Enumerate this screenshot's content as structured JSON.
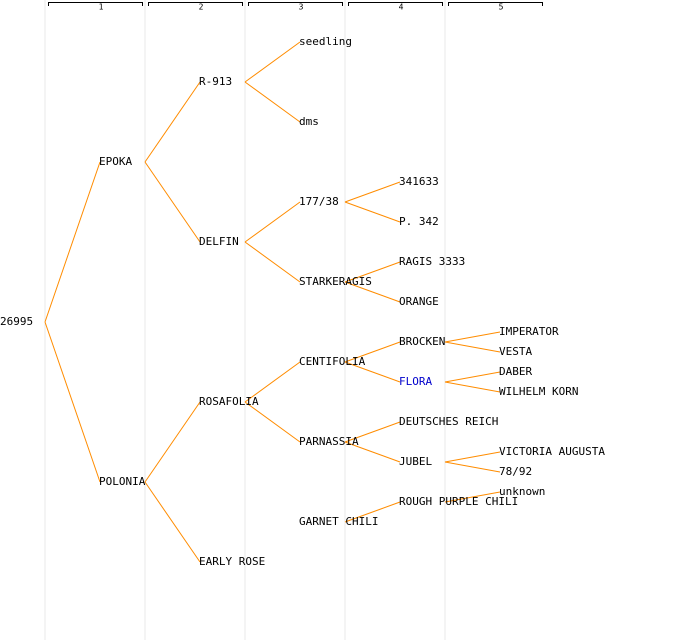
{
  "header": {
    "generations": [
      "1",
      "2",
      "3",
      "4",
      "5"
    ]
  },
  "nodes": [
    "26995",
    "EPOKA",
    "POLONIA",
    "R-913",
    "DELFIN",
    "ROSAFOLIA",
    "EARLY ROSE",
    "seedling",
    "dms",
    "177/38",
    "STARKERAGIS",
    "CENTIFOLIA",
    "PARNASSIA",
    "GARNET CHILI",
    "341633",
    "P. 342",
    "RAGIS 3333",
    "ORANGE",
    "BROCKEN",
    "FLORA",
    "DEUTSCHES REICH",
    "JUBEL",
    "ROUGH PURPLE CHILI",
    "IMPERATOR",
    "VESTA",
    "DABER",
    "WILHELM KORN",
    "VICTORIA AUGUSTA",
    "78/92",
    "unknown"
  ]
}
